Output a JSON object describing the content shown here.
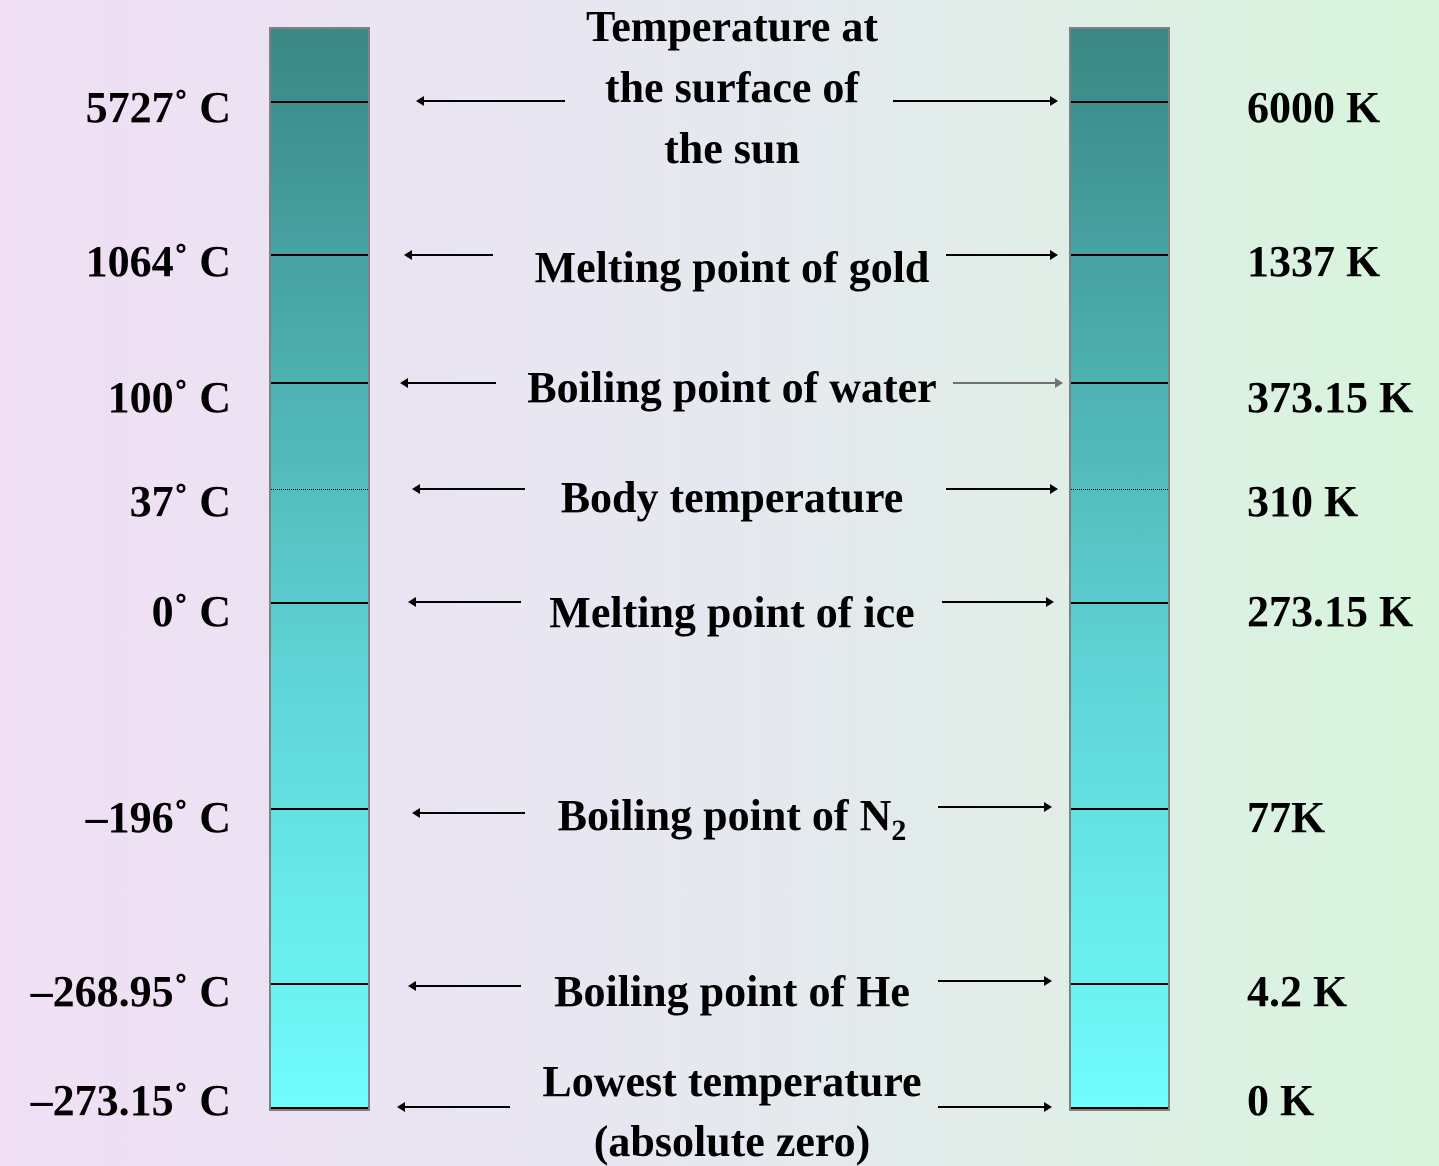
{
  "celsius_labels": {
    "sun": "5727˚ C",
    "gold": "1064˚ C",
    "water": "100˚ C",
    "body": "37˚ C",
    "ice": "0˚ C",
    "n2": "–196˚ C",
    "he": "–268.95˚ C",
    "zero": "–273.15˚ C"
  },
  "kelvin_labels": {
    "sun": "6000 K",
    "gold": "1337 K",
    "water": "373.15 K",
    "body": "310 K",
    "ice": "273.15 K",
    "n2": "77K",
    "he": "4.2 K",
    "zero": "0 K"
  },
  "descriptions": {
    "sun_line1": "Temperature at",
    "sun_line2": "the surface of",
    "sun_line3": "the sun",
    "gold": "Melting point of gold",
    "water": "Boiling point of water",
    "body": "Body temperature",
    "ice": "Melting point of ice",
    "n2_main": "Boiling point of N",
    "n2_sub": "2",
    "he": "Boiling point of He",
    "zero_line1": "Lowest temperature",
    "zero_line2": "(absolute zero)"
  },
  "colors": {
    "thermometer_top": "#3a8785",
    "thermometer_bottom": "#70fdfc",
    "background_left": "#f0dff5",
    "background_right": "#d8f5dc"
  }
}
